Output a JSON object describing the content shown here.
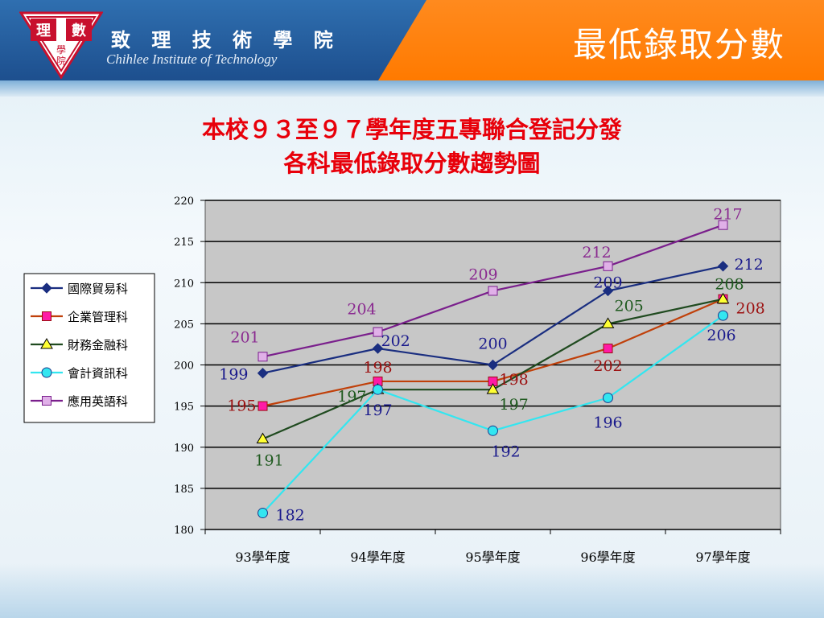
{
  "header": {
    "school_name": "致 理 技 術 學 院",
    "school_name_en": "Chihlee Institute of Technology",
    "slide_title": "最低錄取分數",
    "logo_text": [
      "理",
      "數",
      "學",
      "院"
    ]
  },
  "chart_data": {
    "type": "line",
    "title_lines": [
      "本校９３至９７學年度五專聯合登記分發",
      "各科最低錄取分數趨勢圖"
    ],
    "categories": [
      "93學年度",
      "94學年度",
      "95學年度",
      "96學年度",
      "97學年度"
    ],
    "ylim": [
      180,
      220
    ],
    "yticks": [
      "180",
      "185",
      "190",
      "195",
      "200",
      "205",
      "210",
      "215",
      "220"
    ],
    "grid": true,
    "legend_position": "left",
    "series": [
      {
        "name": "國際貿易科",
        "values": [
          199,
          202,
          200,
          209,
          212
        ],
        "color": "#1a2e80",
        "label_color": "#1a1a8c",
        "marker": "diamond"
      },
      {
        "name": "企業管理科",
        "values": [
          195,
          198,
          198,
          202,
          208
        ],
        "color": "#c0400a",
        "label_color": "#9c1010",
        "marker": "square"
      },
      {
        "name": "財務金融科",
        "values": [
          191,
          197,
          197,
          205,
          208
        ],
        "color": "#1f4a1f",
        "label_color": "#1f5a1f",
        "marker": "triangle"
      },
      {
        "name": "會計資訊科",
        "values": [
          182,
          197,
          192,
          196,
          206
        ],
        "color": "#33e6f0",
        "label_color": "#1a1a8c",
        "marker": "circle"
      },
      {
        "name": "應用英語科",
        "values": [
          201,
          204,
          209,
          212,
          217
        ],
        "color": "#7a1f8c",
        "label_color": "#8a2a90",
        "marker": "square-outline"
      }
    ]
  }
}
